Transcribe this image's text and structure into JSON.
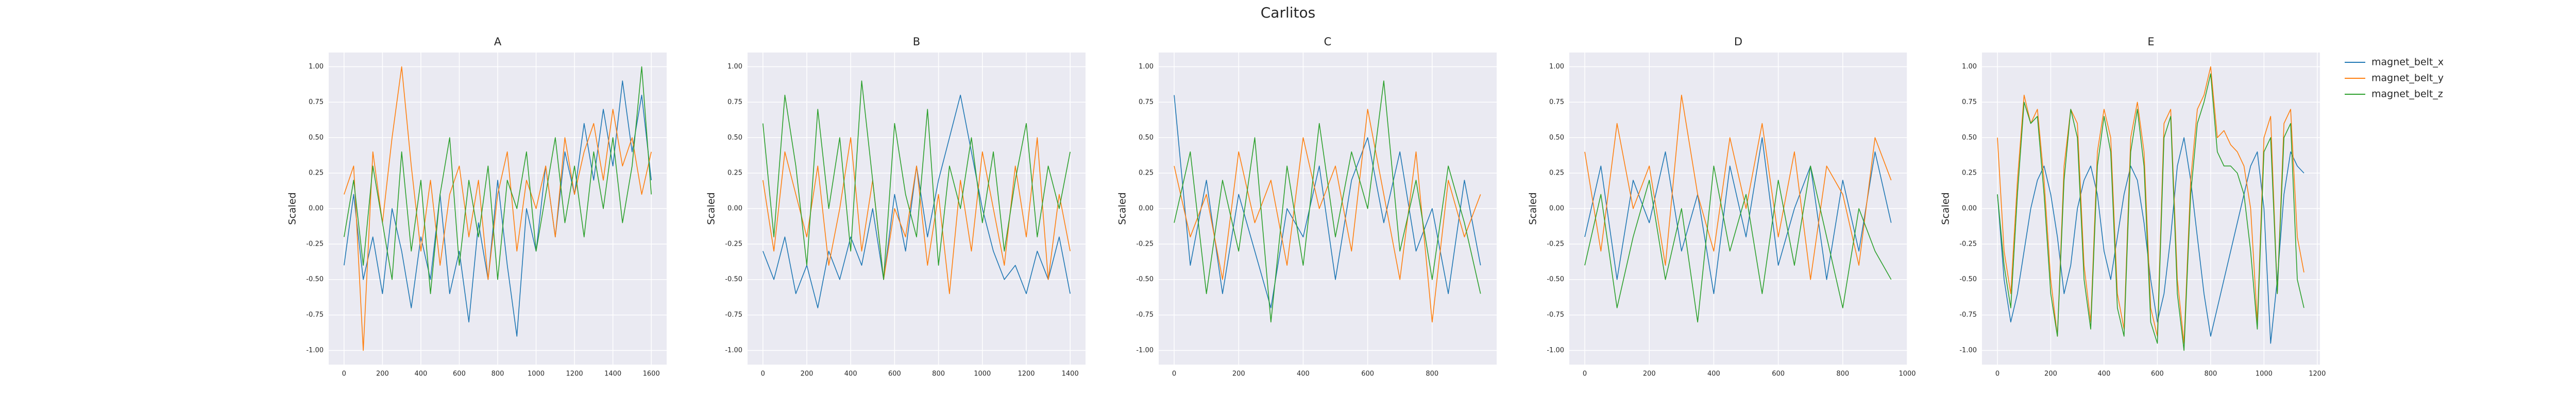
{
  "title": "Carlitos",
  "chart_data": [
    {
      "type": "line",
      "title": "A",
      "ylabel": "Scaled",
      "grid": true,
      "x": [
        0,
        50,
        100,
        150,
        200,
        250,
        300,
        350,
        400,
        450,
        500,
        550,
        600,
        650,
        700,
        750,
        800,
        850,
        900,
        950,
        1000,
        1050,
        1100,
        1150,
        1200,
        1250,
        1300,
        1350,
        1400,
        1450,
        1500,
        1550,
        1600
      ],
      "xlim": [
        -80,
        1680
      ],
      "xticks": [
        0,
        200,
        400,
        600,
        800,
        1000,
        1200,
        1400,
        1600
      ],
      "ylim": [
        -1.1,
        1.1
      ],
      "yticks": [
        {
          "value": -1,
          "label": "-1.00"
        },
        {
          "value": -0.75,
          "label": "-0.75"
        },
        {
          "value": -0.5,
          "label": "-0.50"
        },
        {
          "value": -0.25,
          "label": "-0.25"
        },
        {
          "value": 0,
          "label": "0.00"
        },
        {
          "value": 0.25,
          "label": "0.25"
        },
        {
          "value": 0.5,
          "label": "0.50"
        },
        {
          "value": 0.75,
          "label": "0.75"
        },
        {
          "value": 1,
          "label": "1.00"
        }
      ],
      "series": [
        {
          "color": "#1f77b4",
          "values": [
            -0.4,
            0.1,
            -0.5,
            -0.2,
            -0.6,
            0.0,
            -0.3,
            -0.7,
            -0.2,
            -0.5,
            0.1,
            -0.6,
            -0.3,
            -0.8,
            -0.1,
            -0.5,
            0.2,
            -0.4,
            -0.9,
            0.0,
            -0.3,
            0.3,
            -0.2,
            0.4,
            0.1,
            0.6,
            0.2,
            0.7,
            0.3,
            0.9,
            0.4,
            0.8,
            0.2
          ]
        },
        {
          "color": "#ff7f0e",
          "values": [
            0.1,
            0.3,
            -1.0,
            0.4,
            -0.1,
            0.5,
            1.0,
            0.3,
            -0.3,
            0.2,
            -0.4,
            0.1,
            0.3,
            -0.2,
            0.2,
            -0.5,
            0.1,
            0.4,
            -0.3,
            0.2,
            0.0,
            0.3,
            -0.2,
            0.5,
            0.1,
            0.4,
            0.6,
            0.2,
            0.7,
            0.3,
            0.5,
            0.1,
            0.4
          ]
        },
        {
          "color": "#2ca02c",
          "values": [
            -0.2,
            0.2,
            -0.4,
            0.3,
            -0.1,
            -0.5,
            0.4,
            -0.3,
            0.2,
            -0.6,
            0.1,
            0.5,
            -0.4,
            0.2,
            -0.2,
            0.3,
            -0.5,
            0.2,
            0.0,
            0.4,
            -0.3,
            0.1,
            0.5,
            -0.1,
            0.3,
            -0.2,
            0.4,
            0.0,
            0.5,
            -0.1,
            0.3,
            1.0,
            0.1
          ]
        }
      ]
    },
    {
      "type": "line",
      "title": "B",
      "ylabel": "Scaled",
      "grid": true,
      "x": [
        0,
        50,
        100,
        150,
        200,
        250,
        300,
        350,
        400,
        450,
        500,
        550,
        600,
        650,
        700,
        750,
        800,
        850,
        900,
        950,
        1000,
        1050,
        1100,
        1150,
        1200,
        1250,
        1300,
        1350,
        1400
      ],
      "xlim": [
        -70,
        1470
      ],
      "xticks": [
        0,
        200,
        400,
        600,
        800,
        1000,
        1200,
        1400
      ],
      "ylim": [
        -1.1,
        1.1
      ],
      "yticks": [
        {
          "value": -1,
          "label": "-1.00"
        },
        {
          "value": -0.75,
          "label": "-0.75"
        },
        {
          "value": -0.5,
          "label": "-0.50"
        },
        {
          "value": -0.25,
          "label": "-0.25"
        },
        {
          "value": 0,
          "label": "0.00"
        },
        {
          "value": 0.25,
          "label": "0.25"
        },
        {
          "value": 0.5,
          "label": "0.50"
        },
        {
          "value": 0.75,
          "label": "0.75"
        },
        {
          "value": 1,
          "label": "1.00"
        }
      ],
      "series": [
        {
          "color": "#1f77b4",
          "values": [
            -0.3,
            -0.5,
            -0.2,
            -0.6,
            -0.4,
            -0.7,
            -0.3,
            -0.5,
            -0.2,
            -0.4,
            0.0,
            -0.5,
            0.1,
            -0.3,
            0.3,
            -0.2,
            0.2,
            0.5,
            0.8,
            0.4,
            0.0,
            -0.3,
            -0.5,
            -0.4,
            -0.6,
            -0.3,
            -0.5,
            -0.2,
            -0.6
          ]
        },
        {
          "color": "#ff7f0e",
          "values": [
            0.2,
            -0.3,
            0.4,
            0.1,
            -0.2,
            0.3,
            -0.4,
            0.0,
            0.5,
            -0.3,
            0.2,
            -0.5,
            0.0,
            -0.2,
            0.3,
            -0.4,
            0.1,
            -0.6,
            0.2,
            -0.3,
            0.4,
            0.0,
            -0.4,
            0.3,
            -0.2,
            0.5,
            -0.5,
            0.1,
            -0.3
          ]
        },
        {
          "color": "#2ca02c",
          "values": [
            0.6,
            -0.2,
            0.8,
            0.3,
            -0.4,
            0.7,
            0.0,
            0.5,
            -0.3,
            0.9,
            0.2,
            -0.5,
            0.6,
            0.1,
            -0.2,
            0.7,
            -0.4,
            0.3,
            0.0,
            0.5,
            -0.1,
            0.4,
            -0.3,
            0.2,
            0.6,
            -0.2,
            0.3,
            0.0,
            0.4
          ]
        }
      ]
    },
    {
      "type": "line",
      "title": "C",
      "ylabel": "Scaled",
      "grid": true,
      "x": [
        0,
        50,
        100,
        150,
        200,
        250,
        300,
        350,
        400,
        450,
        500,
        550,
        600,
        650,
        700,
        750,
        800,
        850,
        900,
        950
      ],
      "xlim": [
        -48,
        1000
      ],
      "xticks": [
        0,
        200,
        400,
        600,
        800
      ],
      "ylim": [
        -1.1,
        1.1
      ],
      "yticks": [
        {
          "value": -1,
          "label": "-1.00"
        },
        {
          "value": -0.75,
          "label": "-0.75"
        },
        {
          "value": -0.5,
          "label": "-0.50"
        },
        {
          "value": -0.25,
          "label": "-0.25"
        },
        {
          "value": 0,
          "label": "0.00"
        },
        {
          "value": 0.25,
          "label": "0.25"
        },
        {
          "value": 0.5,
          "label": "0.50"
        },
        {
          "value": 0.75,
          "label": "0.75"
        },
        {
          "value": 1,
          "label": "1.00"
        }
      ],
      "series": [
        {
          "color": "#1f77b4",
          "values": [
            0.8,
            -0.4,
            0.2,
            -0.6,
            0.1,
            -0.3,
            -0.7,
            0.0,
            -0.2,
            0.3,
            -0.5,
            0.2,
            0.5,
            -0.1,
            0.4,
            -0.3,
            0.0,
            -0.6,
            0.2,
            -0.4
          ]
        },
        {
          "color": "#ff7f0e",
          "values": [
            0.3,
            -0.2,
            0.1,
            -0.5,
            0.4,
            -0.1,
            0.2,
            -0.4,
            0.5,
            0.0,
            0.3,
            -0.3,
            0.7,
            0.1,
            -0.5,
            0.4,
            -0.8,
            0.2,
            -0.2,
            0.1
          ]
        },
        {
          "color": "#2ca02c",
          "values": [
            -0.1,
            0.4,
            -0.6,
            0.2,
            -0.3,
            0.5,
            -0.8,
            0.3,
            -0.4,
            0.6,
            -0.2,
            0.4,
            0.0,
            0.9,
            -0.3,
            0.2,
            -0.5,
            0.3,
            -0.1,
            -0.6
          ]
        }
      ]
    },
    {
      "type": "line",
      "title": "D",
      "ylabel": "Scaled",
      "grid": true,
      "x": [
        0,
        50,
        100,
        150,
        200,
        250,
        300,
        350,
        400,
        450,
        500,
        550,
        600,
        650,
        700,
        750,
        800,
        850,
        900,
        950
      ],
      "xlim": [
        -48,
        1000
      ],
      "xticks": [
        0,
        200,
        400,
        600,
        800,
        1000
      ],
      "ylim": [
        -1.1,
        1.1
      ],
      "yticks": [
        {
          "value": -1,
          "label": "-1.00"
        },
        {
          "value": -0.75,
          "label": "-0.75"
        },
        {
          "value": -0.5,
          "label": "-0.50"
        },
        {
          "value": -0.25,
          "label": "-0.25"
        },
        {
          "value": 0,
          "label": "0.00"
        },
        {
          "value": 0.25,
          "label": "0.25"
        },
        {
          "value": 0.5,
          "label": "0.50"
        },
        {
          "value": 0.75,
          "label": "0.75"
        },
        {
          "value": 1,
          "label": "1.00"
        }
      ],
      "series": [
        {
          "color": "#1f77b4",
          "values": [
            -0.2,
            0.3,
            -0.5,
            0.2,
            -0.1,
            0.4,
            -0.3,
            0.1,
            -0.6,
            0.3,
            -0.2,
            0.5,
            -0.4,
            0.0,
            0.3,
            -0.5,
            0.2,
            -0.3,
            0.4,
            -0.1
          ]
        },
        {
          "color": "#ff7f0e",
          "values": [
            0.4,
            -0.3,
            0.6,
            0.0,
            0.3,
            -0.4,
            0.8,
            0.1,
            -0.3,
            0.5,
            0.0,
            0.6,
            -0.2,
            0.4,
            -0.5,
            0.3,
            0.1,
            -0.4,
            0.5,
            0.2
          ]
        },
        {
          "color": "#2ca02c",
          "values": [
            -0.4,
            0.1,
            -0.7,
            -0.2,
            0.2,
            -0.5,
            0.0,
            -0.8,
            0.3,
            -0.3,
            0.1,
            -0.6,
            0.2,
            -0.4,
            0.3,
            -0.2,
            -0.7,
            0.0,
            -0.3,
            -0.5
          ]
        }
      ]
    },
    {
      "type": "line",
      "title": "E",
      "ylabel": "Scaled",
      "grid": true,
      "legend": "outside right",
      "x": [
        0,
        25,
        50,
        75,
        100,
        125,
        150,
        175,
        200,
        225,
        250,
        275,
        300,
        325,
        350,
        375,
        400,
        425,
        450,
        475,
        500,
        525,
        550,
        575,
        600,
        625,
        650,
        675,
        700,
        725,
        750,
        775,
        800,
        825,
        850,
        875,
        900,
        925,
        950,
        975,
        1000,
        1025,
        1050,
        1075,
        1100,
        1125,
        1150
      ],
      "xlim": [
        -58,
        1210
      ],
      "xticks": [
        0,
        200,
        400,
        600,
        800,
        1000,
        1200
      ],
      "ylim": [
        -1.1,
        1.1
      ],
      "yticks": [
        {
          "value": -1,
          "label": "-1.00"
        },
        {
          "value": -0.75,
          "label": "-0.75"
        },
        {
          "value": -0.5,
          "label": "-0.50"
        },
        {
          "value": -0.25,
          "label": "-0.25"
        },
        {
          "value": 0,
          "label": "0.00"
        },
        {
          "value": 0.25,
          "label": "0.25"
        },
        {
          "value": 0.5,
          "label": "0.50"
        },
        {
          "value": 0.75,
          "label": "0.75"
        },
        {
          "value": 1,
          "label": "1.00"
        }
      ],
      "series": [
        {
          "name": "magnet_belt_x",
          "color": "#1f77b4",
          "values": [
            0.1,
            -0.5,
            -0.8,
            -0.6,
            -0.3,
            0.0,
            0.2,
            0.3,
            0.1,
            -0.2,
            -0.6,
            -0.4,
            0.0,
            0.2,
            0.3,
            0.1,
            -0.3,
            -0.5,
            -0.2,
            0.1,
            0.3,
            0.2,
            -0.1,
            -0.5,
            -0.8,
            -0.6,
            -0.2,
            0.3,
            0.5,
            0.2,
            -0.2,
            -0.6,
            -0.9,
            -0.7,
            -0.5,
            -0.3,
            -0.1,
            0.1,
            0.3,
            0.4,
            0.0,
            -0.95,
            -0.5,
            0.1,
            0.4,
            0.3,
            0.25
          ]
        },
        {
          "name": "magnet_belt_y",
          "color": "#ff7f0e",
          "values": [
            0.5,
            -0.3,
            -0.6,
            0.2,
            0.8,
            0.6,
            0.7,
            0.2,
            -0.5,
            -0.9,
            0.3,
            0.7,
            0.6,
            -0.4,
            -0.8,
            0.4,
            0.7,
            0.5,
            -0.6,
            -0.85,
            0.5,
            0.75,
            0.4,
            -0.7,
            -0.9,
            0.6,
            0.7,
            -0.5,
            -0.95,
            0.2,
            0.7,
            0.8,
            1.0,
            0.5,
            0.55,
            0.45,
            0.4,
            0.3,
            0.0,
            -0.8,
            0.5,
            0.65,
            -0.6,
            0.6,
            0.7,
            -0.2,
            -0.45
          ]
        },
        {
          "name": "magnet_belt_z",
          "color": "#2ca02c",
          "values": [
            0.1,
            -0.4,
            -0.7,
            0.1,
            0.75,
            0.6,
            0.65,
            0.1,
            -0.6,
            -0.9,
            0.2,
            0.7,
            0.5,
            -0.5,
            -0.85,
            0.3,
            0.65,
            0.4,
            -0.7,
            -0.9,
            0.4,
            0.7,
            0.3,
            -0.8,
            -0.95,
            0.5,
            0.65,
            -0.6,
            -1.0,
            0.1,
            0.6,
            0.75,
            0.95,
            0.4,
            0.3,
            0.3,
            0.25,
            0.1,
            -0.3,
            -0.85,
            0.4,
            0.5,
            -0.6,
            0.5,
            0.6,
            -0.5,
            -0.7
          ]
        }
      ]
    }
  ]
}
